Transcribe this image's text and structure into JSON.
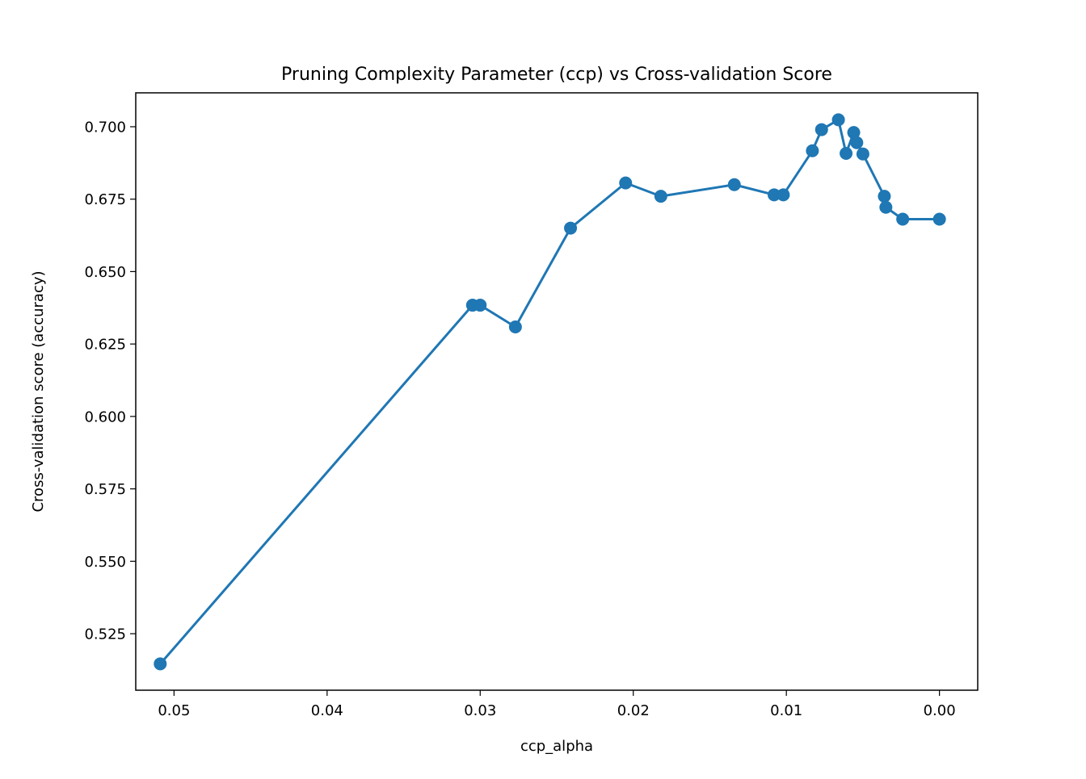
{
  "chart_data": {
    "type": "line",
    "title": "Pruning Complexity Parameter (ccp) vs Cross-validation Score",
    "xlabel": "ccp_alpha",
    "ylabel": "Cross-validation score (accuracy)",
    "x_inverted": true,
    "xlim": [
      0.0525,
      -0.0025
    ],
    "ylim": [
      0.5055,
      0.7117
    ],
    "xticks": [
      0.05,
      0.04,
      0.03,
      0.02,
      0.01,
      0.0
    ],
    "xtick_labels": [
      "0.05",
      "0.04",
      "0.03",
      "0.02",
      "0.01",
      "0.00"
    ],
    "yticks": [
      0.525,
      0.55,
      0.575,
      0.6,
      0.625,
      0.65,
      0.675,
      0.7
    ],
    "ytick_labels": [
      "0.525",
      "0.550",
      "0.575",
      "0.600",
      "0.625",
      "0.650",
      "0.675",
      "0.700"
    ],
    "grid": false,
    "color": "#1f77b4",
    "markers": true,
    "series": [
      {
        "x": [
          0.0509,
          0.0305,
          0.03,
          0.0277,
          0.0241,
          0.0205,
          0.0182,
          0.0134,
          0.0108,
          0.0102,
          0.0083,
          0.0077,
          0.0066,
          0.0061,
          0.0056,
          0.0054,
          0.005,
          0.0036,
          0.0035,
          0.0024,
          0.0
        ],
        "y": [
          0.5146,
          0.6384,
          0.6384,
          0.6309,
          0.665,
          0.6806,
          0.676,
          0.68,
          0.6765,
          0.6765,
          0.6917,
          0.699,
          0.7024,
          0.6908,
          0.698,
          0.6945,
          0.6906,
          0.676,
          0.6722,
          0.6681,
          0.6681
        ]
      }
    ]
  }
}
